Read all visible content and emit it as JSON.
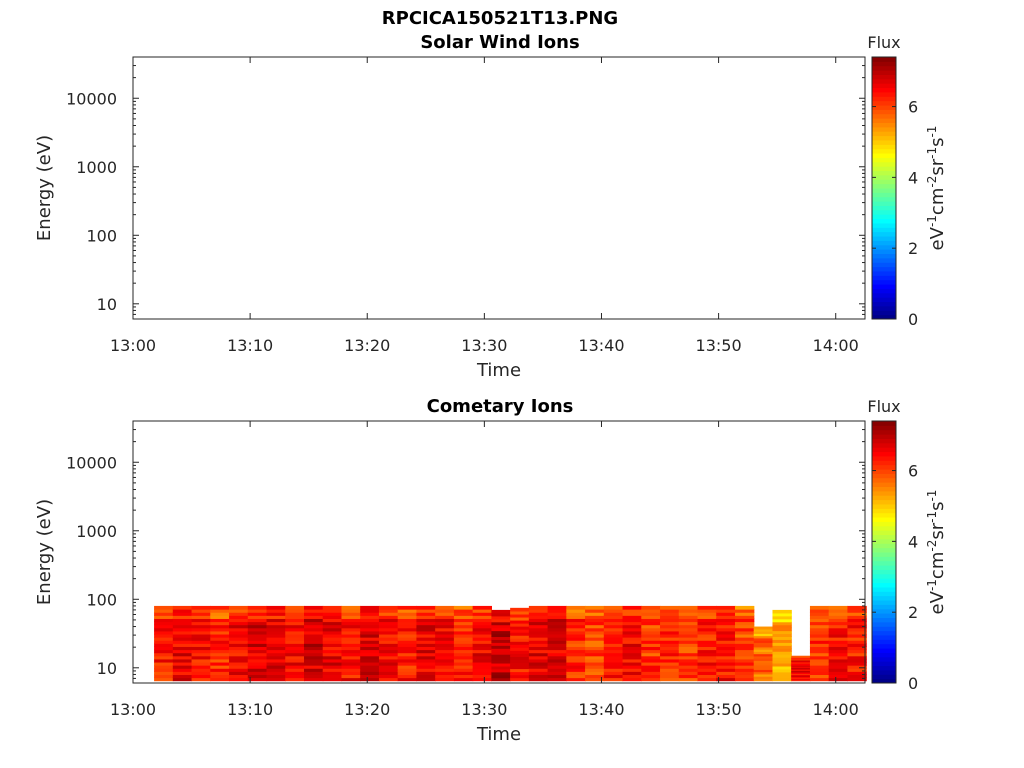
{
  "figure_title": "RPCICA150521T13.PNG",
  "chart_data": [
    {
      "type": "heatmap",
      "title": "Solar Wind Ions",
      "xlabel": "Time",
      "ylabel": "Energy (eV)",
      "x_ticks": [
        "13:00",
        "13:10",
        "13:20",
        "13:30",
        "13:40",
        "13:50",
        "14:00"
      ],
      "y_ticks": [
        "10",
        "100",
        "1000",
        "10000"
      ],
      "y_scale": "log",
      "ylim_eV": [
        6,
        40000
      ],
      "xlim_minutes_after_13": [
        0,
        62.5
      ],
      "colorbar": {
        "title": "Flux",
        "label_base": "eV",
        "label": "eV-1cm-2sr-1s-1",
        "ticks": [
          "0",
          "2",
          "4",
          "6"
        ],
        "range": [
          0,
          7.4
        ],
        "colormap": "jet"
      },
      "cells": []
    },
    {
      "type": "heatmap",
      "title": "Cometary Ions",
      "xlabel": "Time",
      "ylabel": "Energy (eV)",
      "x_ticks": [
        "13:00",
        "13:10",
        "13:20",
        "13:30",
        "13:40",
        "13:50",
        "14:00"
      ],
      "y_ticks": [
        "10",
        "100",
        "1000",
        "10000"
      ],
      "y_scale": "log",
      "ylim_eV": [
        6,
        40000
      ],
      "xlim_minutes_after_13": [
        0,
        62.5
      ],
      "colorbar": {
        "title": "Flux",
        "label_base": "eV",
        "label": "eV-1cm-2sr-1s-1",
        "ticks": [
          "0",
          "2",
          "4",
          "6"
        ],
        "range": [
          0,
          7.4
        ],
        "colormap": "jet"
      },
      "time_start_minutes": 1.8,
      "time_step_minutes": 1.6,
      "column_top_eV": [
        80,
        80,
        80,
        80,
        80,
        80,
        80,
        80,
        80,
        80,
        80,
        80,
        80,
        80,
        80,
        80,
        80,
        80,
        70,
        75,
        80,
        80,
        80,
        80,
        80,
        80,
        80,
        80,
        80,
        80,
        80,
        80,
        40,
        70,
        15,
        80,
        80,
        80
      ],
      "column_flux": [
        6.3,
        6.6,
        6.4,
        6.2,
        6.5,
        6.7,
        6.6,
        6.5,
        6.8,
        6.6,
        6.4,
        6.7,
        6.5,
        6.3,
        6.6,
        6.4,
        6.2,
        6.5,
        6.9,
        6.4,
        6.6,
        6.7,
        6.2,
        6.0,
        6.3,
        6.5,
        6.1,
        6.2,
        6.0,
        6.3,
        6.4,
        6.0,
        5.7,
        5.3,
        6.5,
        6.1,
        6.4,
        6.3
      ]
    }
  ]
}
